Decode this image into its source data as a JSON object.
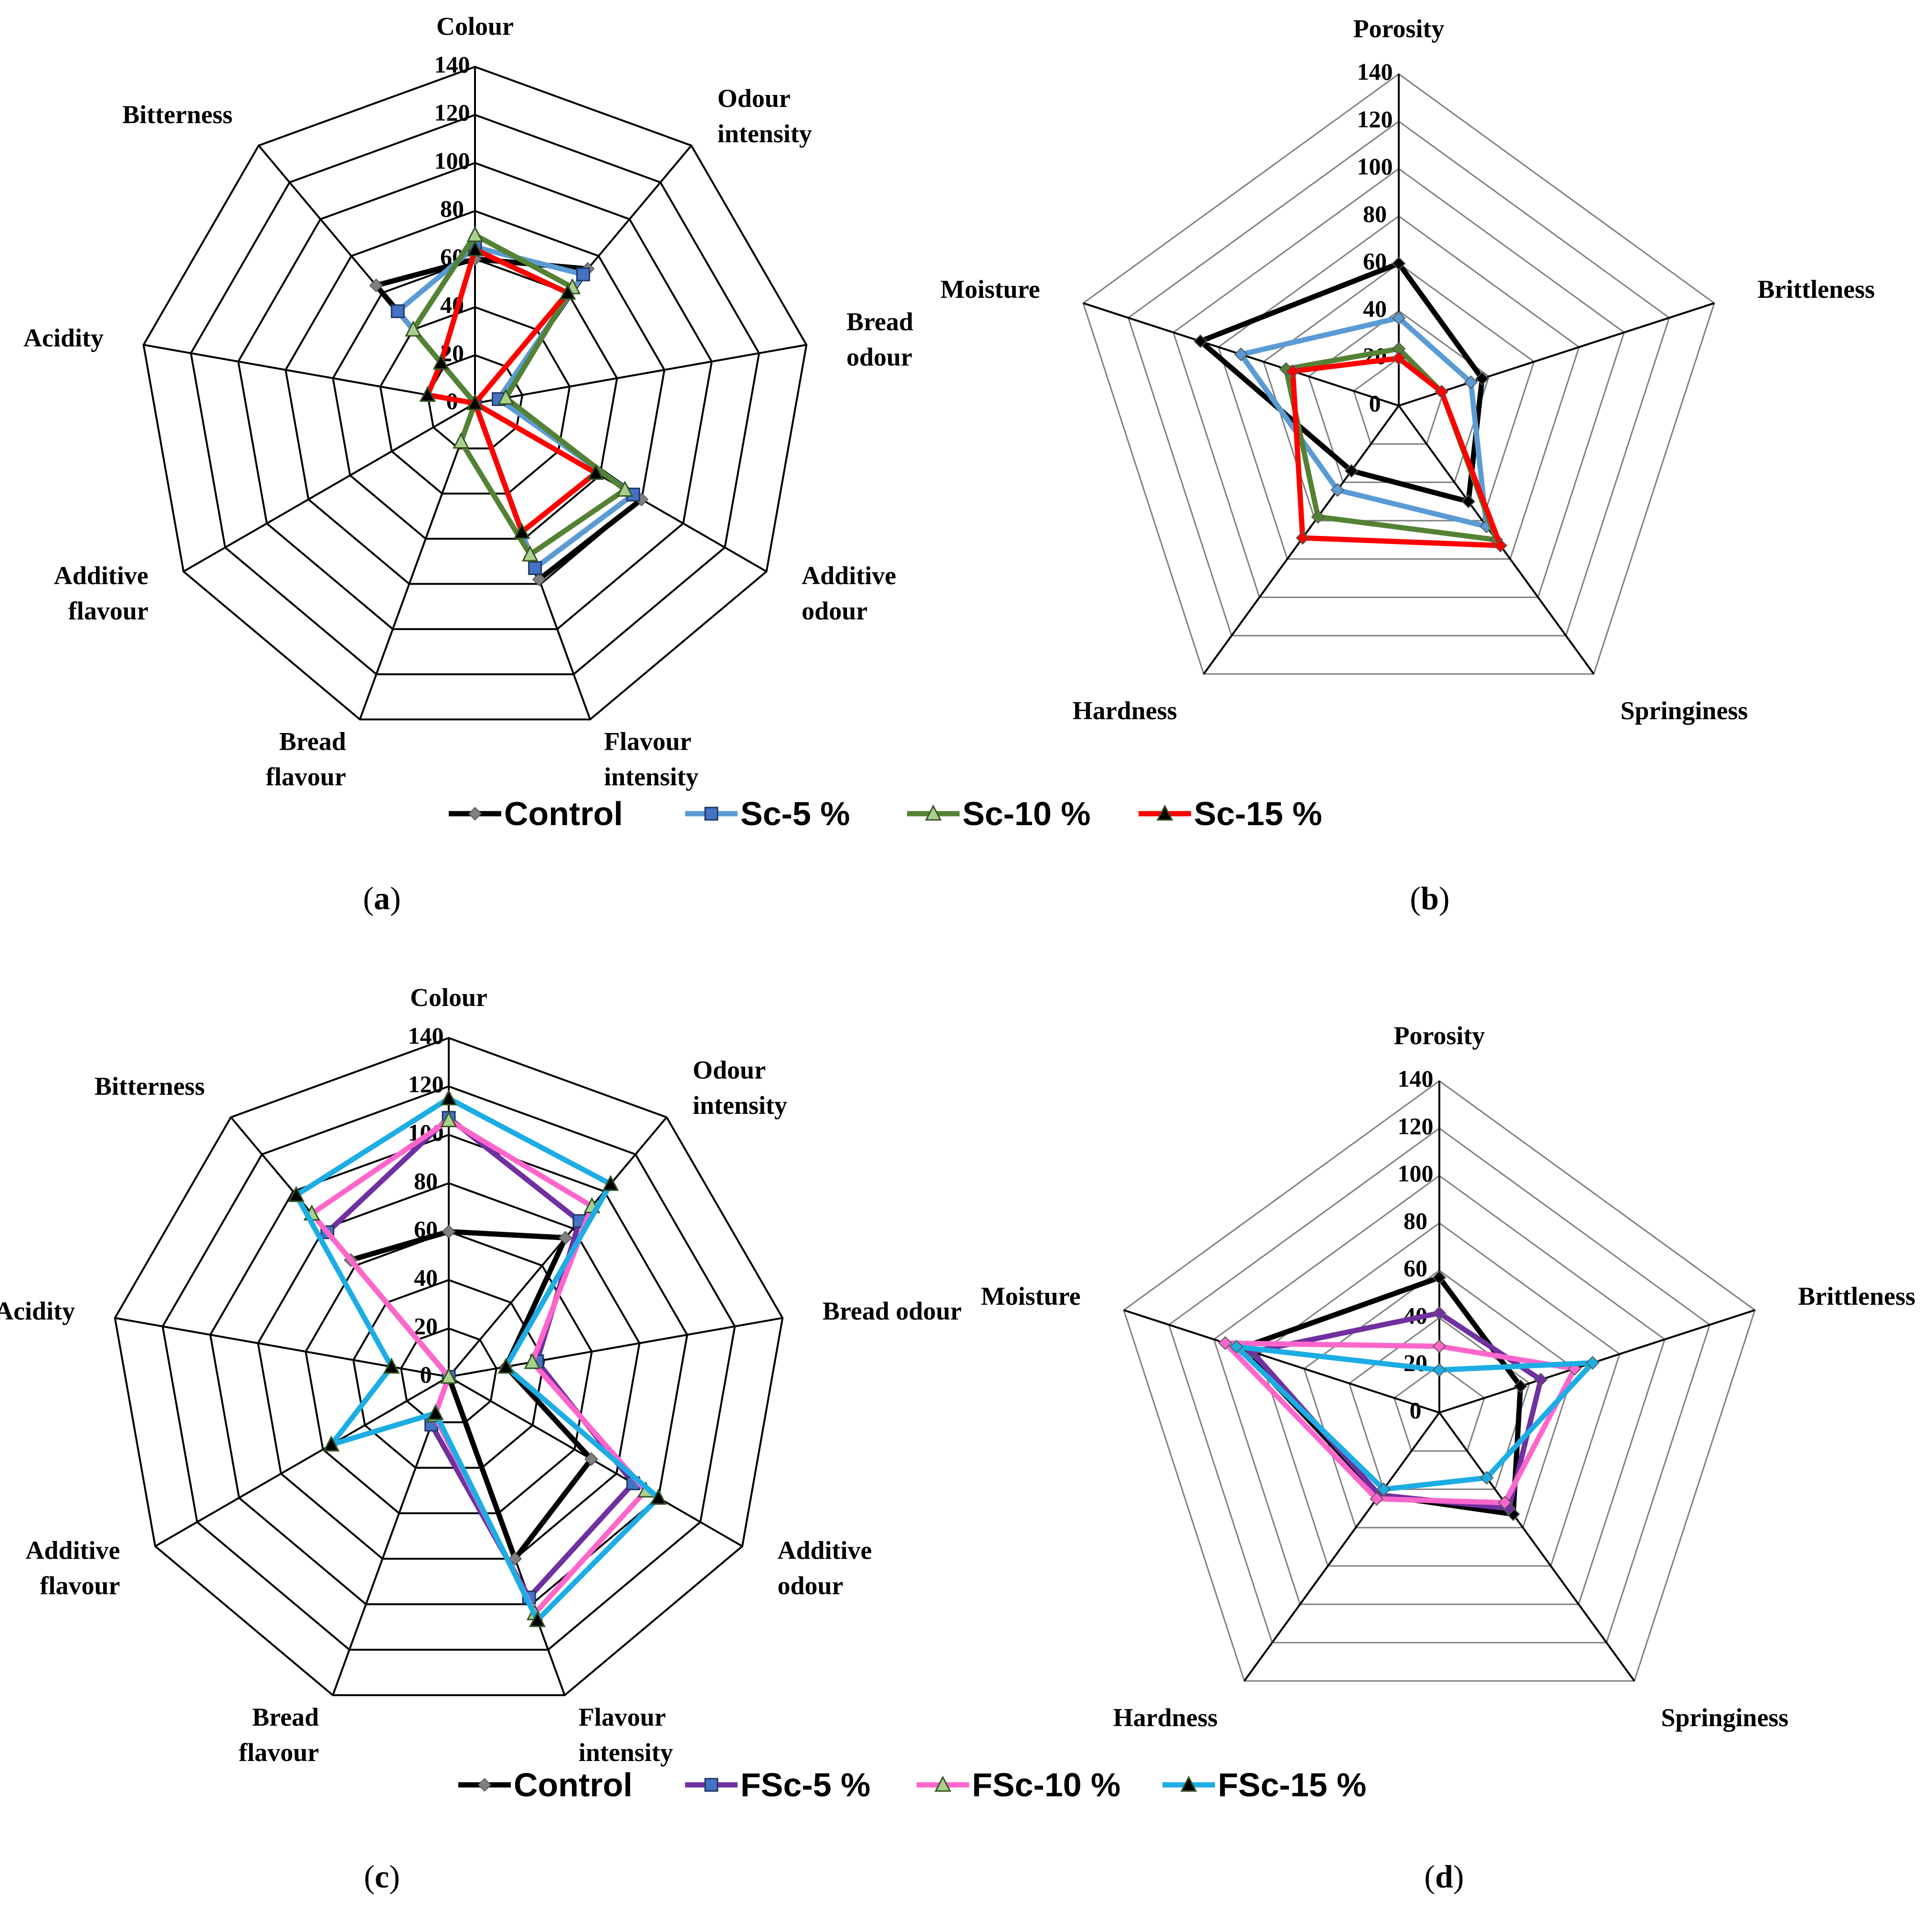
{
  "chart_data": [
    {
      "type": "radar",
      "panel_label": "a",
      "axes": [
        "Colour",
        "Odour intensity",
        "Bread odour",
        "Additive odour",
        "Flavour intensity",
        "Bread flavour",
        "Additive flavour",
        "Acidity",
        "Bitterness"
      ],
      "rlim": [
        0,
        140
      ],
      "ticks": [
        "0",
        "20",
        "40",
        "60",
        "80",
        "100",
        "120",
        "140"
      ],
      "legend_position": "bottom",
      "series": [
        {
          "name": "Control",
          "color": "#000000",
          "marker": "diamond",
          "marker_color": "#808080",
          "values": [
            60,
            73,
            10,
            80,
            78,
            0,
            0,
            0,
            64
          ]
        },
        {
          "name": "Sc-5 %",
          "color": "#5b9bd5",
          "marker": "square",
          "marker_color": "#4472c4",
          "values": [
            65,
            70,
            10,
            76,
            73,
            0,
            0,
            0,
            50
          ]
        },
        {
          "name": "Sc-10 %",
          "color": "#548235",
          "marker": "triangle",
          "marker_color": "#a9d18e",
          "values": [
            70,
            63,
            13,
            72,
            67,
            17,
            0,
            0,
            40
          ]
        },
        {
          "name": "Sc-15 %",
          "color": "#ff0000",
          "marker": "triangle",
          "marker_color": "#000000",
          "values": [
            64,
            60,
            0,
            58,
            57,
            0,
            0,
            20,
            22
          ]
        }
      ]
    },
    {
      "type": "radar",
      "panel_label": "b",
      "axes": [
        "Porosity",
        "Brittleness",
        "Springiness",
        "Hardness",
        "Moisture"
      ],
      "rlim": [
        0,
        140
      ],
      "ticks": [
        "0",
        "20",
        "40",
        "60",
        "80",
        "100",
        "120",
        "140"
      ],
      "legend_position": "bottom",
      "series": [
        {
          "name": "Control",
          "color": "#000000",
          "values": [
            60,
            37,
            50,
            34,
            88
          ]
        },
        {
          "name": "Sc-5 %",
          "color": "#5b9bd5",
          "values": [
            37,
            32,
            63,
            44,
            70
          ]
        },
        {
          "name": "Sc-10 %",
          "color": "#548235",
          "values": [
            24,
            19,
            70,
            58,
            50
          ]
        },
        {
          "name": "Sc-15 %",
          "color": "#ff0000",
          "values": [
            20,
            19,
            73,
            69,
            47
          ]
        }
      ]
    },
    {
      "type": "radar",
      "panel_label": "c",
      "axes": [
        "Colour",
        "Odour intensity",
        "Bread odour",
        "Additive odour",
        "Flavour intensity",
        "Bread flavour",
        "Additive flavour",
        "Acidity",
        "Bitterness"
      ],
      "rlim": [
        0,
        140
      ],
      "ticks": [
        "0",
        "20",
        "40",
        "60",
        "80",
        "100",
        "120",
        "140"
      ],
      "legend_position": "bottom",
      "series": [
        {
          "name": "Control",
          "color": "#000000",
          "marker": "diamond",
          "marker_color": "#808080",
          "values": [
            60,
            75,
            24,
            68,
            80,
            0,
            0,
            0,
            63
          ]
        },
        {
          "name": "FSc-5 %",
          "color": "#7030a0",
          "marker": "square",
          "marker_color": "#4472c4",
          "values": [
            107,
            84,
            37,
            88,
            97,
            21,
            0,
            0,
            78
          ]
        },
        {
          "name": "FSc-10 %",
          "color": "#ff66cc",
          "marker": "triangle",
          "marker_color": "#a9d18e",
          "values": [
            106,
            92,
            35,
            94,
            104,
            17,
            0,
            0,
            88
          ]
        },
        {
          "name": "FSc-15 %",
          "color": "#1cade4",
          "marker": "triangle",
          "marker_color": "#000000",
          "values": [
            115,
            104,
            24,
            100,
            107,
            16,
            56,
            24,
            98
          ]
        }
      ]
    },
    {
      "type": "radar",
      "panel_label": "d",
      "axes": [
        "Porosity",
        "Brittleness",
        "Springiness",
        "Hardness",
        "Moisture"
      ],
      "rlim": [
        0,
        140
      ],
      "ticks": [
        "0",
        "20",
        "40",
        "60",
        "80",
        "100",
        "120",
        "140"
      ],
      "legend_position": "bottom",
      "series": [
        {
          "name": "Control",
          "color": "#000000",
          "values": [
            57,
            36,
            53,
            43,
            88
          ]
        },
        {
          "name": "FSc-5 %",
          "color": "#7030a0",
          "values": [
            42,
            45,
            50,
            43,
            83
          ]
        },
        {
          "name": "FSc-10 %",
          "color": "#ff66cc",
          "values": [
            28,
            60,
            47,
            45,
            95
          ]
        },
        {
          "name": "FSc-15 %",
          "color": "#1cade4",
          "values": [
            18,
            68,
            34,
            40,
            90
          ]
        }
      ]
    }
  ]
}
